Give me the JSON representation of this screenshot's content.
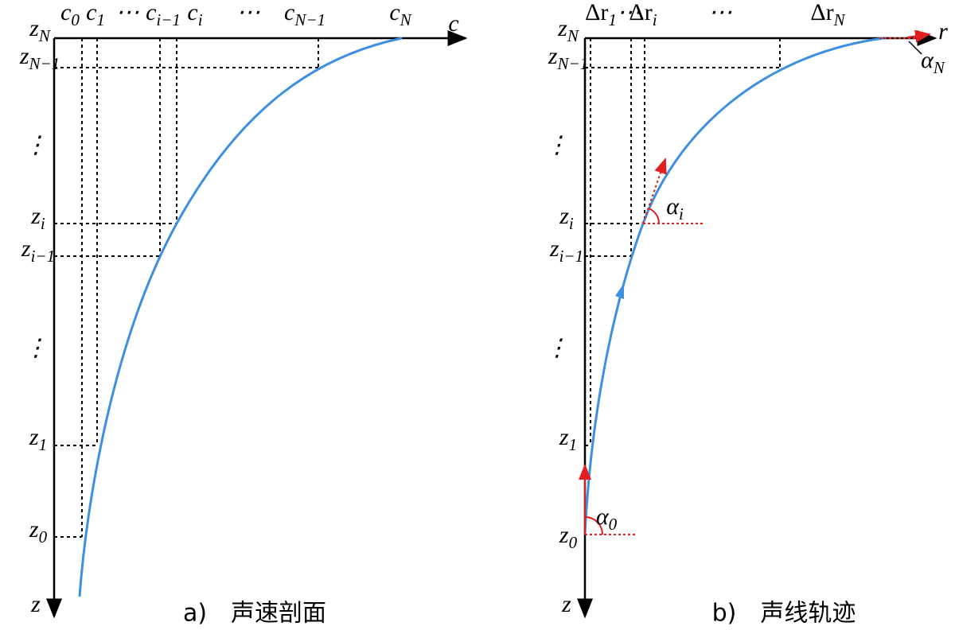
{
  "panel_a": {
    "caption": "a)　声速剖面",
    "x_axis_label": "c",
    "y_axis_label": "z",
    "top_labels": [
      {
        "base": "c",
        "sub": "0"
      },
      {
        "base": "c",
        "sub": "1"
      },
      "⋯",
      {
        "base": "c",
        "sub": "i−1"
      },
      {
        "base": "c",
        "sub": "i"
      },
      "⋯",
      {
        "base": "c",
        "sub": "N−1"
      },
      {
        "base": "c",
        "sub": "N"
      }
    ],
    "left_labels": [
      {
        "base": "z",
        "sub": "N"
      },
      {
        "base": "z",
        "sub": "N−1"
      },
      "⋮",
      {
        "base": "z",
        "sub": "i"
      },
      {
        "base": "z",
        "sub": "i−1"
      },
      "⋮",
      {
        "base": "z",
        "sub": "1"
      },
      {
        "base": "z",
        "sub": "0"
      }
    ]
  },
  "panel_b": {
    "caption": "b)　声线轨迹",
    "x_axis_label": "r",
    "y_axis_label": "z",
    "top_labels": [
      {
        "base": "Δr",
        "sub": "1"
      },
      "⋯",
      {
        "base": "Δr",
        "sub": "i"
      },
      "⋯",
      {
        "base": "Δr",
        "sub": "N"
      }
    ],
    "left_labels": [
      {
        "base": "z",
        "sub": "N"
      },
      {
        "base": "z",
        "sub": "N−1"
      },
      "⋮",
      {
        "base": "z",
        "sub": "i"
      },
      {
        "base": "z",
        "sub": "i−1"
      },
      "⋮",
      {
        "base": "z",
        "sub": "1"
      },
      {
        "base": "z",
        "sub": "0"
      }
    ],
    "angle_labels": [
      {
        "base": "α",
        "sub": "N"
      },
      {
        "base": "α",
        "sub": "i"
      },
      {
        "base": "α",
        "sub": "0"
      }
    ]
  }
}
